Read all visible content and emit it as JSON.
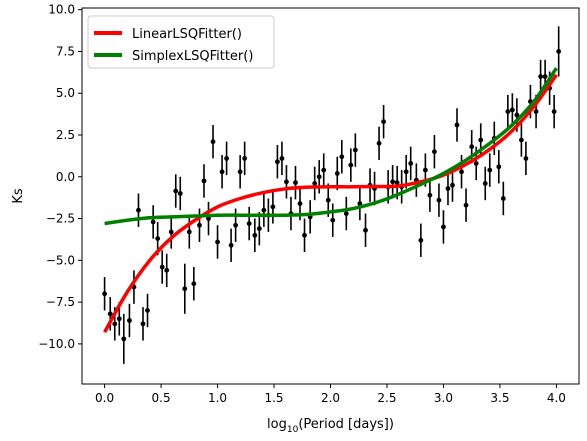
{
  "colors": {
    "linear": "#ff0000",
    "simplex": "#008000",
    "points": "#000000"
  },
  "chart_data": {
    "type": "scatter",
    "xlabel": "log$_{10}$(Period [days])",
    "xlabel_parts": {
      "main": "log",
      "sub": "10",
      "rest": "(Period [days])"
    },
    "ylabel": "Ks",
    "xlim": [
      -0.2,
      4.2
    ],
    "ylim": [
      -12.4,
      10.1
    ],
    "grid": false,
    "legend_placement": "top-left",
    "xticks": [
      0.0,
      0.5,
      1.0,
      1.5,
      2.0,
      2.5,
      3.0,
      3.5,
      4.0
    ],
    "xtick_labels": [
      "0.0",
      "0.5",
      "1.0",
      "1.5",
      "2.0",
      "2.5",
      "3.0",
      "3.5",
      "4.0"
    ],
    "yticks": [
      10.0,
      7.5,
      5.0,
      2.5,
      0.0,
      -2.5,
      -5.0,
      -7.5,
      -10.0
    ],
    "ytick_labels": [
      "10.0",
      "7.5",
      "5.0",
      "2.5",
      "0.0",
      "−2.5",
      "−5.0",
      "−7.5",
      "−10.0"
    ],
    "series": [
      {
        "name": "LinearLSQFitter()",
        "kind": "line",
        "color": "#ff0000",
        "x": [
          0.0,
          0.2,
          0.4,
          0.6,
          0.8,
          1.0,
          1.2,
          1.4,
          1.6,
          1.8,
          2.0,
          2.2,
          2.4,
          2.6,
          2.8,
          3.0,
          3.2,
          3.4,
          3.6,
          3.8,
          4.0
        ],
        "y": [
          -9.3,
          -6.9,
          -5.0,
          -3.6,
          -2.6,
          -1.8,
          -1.3,
          -0.95,
          -0.72,
          -0.62,
          -0.6,
          -0.6,
          -0.58,
          -0.55,
          -0.3,
          0.1,
          0.75,
          1.6,
          2.7,
          4.2,
          6.1
        ]
      },
      {
        "name": "SimplexLSQFitter()",
        "kind": "line",
        "color": "#008000",
        "x": [
          0.0,
          0.2,
          0.4,
          0.6,
          0.8,
          1.0,
          1.2,
          1.4,
          1.6,
          1.8,
          2.0,
          2.2,
          2.4,
          2.6,
          2.8,
          3.0,
          3.2,
          3.4,
          3.6,
          3.8,
          4.0
        ],
        "y": [
          -2.8,
          -2.6,
          -2.45,
          -2.4,
          -2.35,
          -2.3,
          -2.3,
          -2.3,
          -2.3,
          -2.25,
          -2.1,
          -1.9,
          -1.55,
          -1.05,
          -0.45,
          0.2,
          1.0,
          1.95,
          3.05,
          4.5,
          6.5
        ]
      },
      {
        "name": "data",
        "kind": "errorbar",
        "color": "#000000",
        "points": [
          {
            "x": 0.0,
            "y": -7.0,
            "err": 1.0
          },
          {
            "x": 0.05,
            "y": -8.2,
            "err": 1.0
          },
          {
            "x": 0.09,
            "y": -8.8,
            "err": 1.0
          },
          {
            "x": 0.13,
            "y": -8.5,
            "err": 1.0
          },
          {
            "x": 0.17,
            "y": -9.7,
            "err": 1.5
          },
          {
            "x": 0.22,
            "y": -8.6,
            "err": 1.0
          },
          {
            "x": 0.26,
            "y": -6.6,
            "err": 1.0
          },
          {
            "x": 0.3,
            "y": -2.0,
            "err": 1.0
          },
          {
            "x": 0.34,
            "y": -8.8,
            "err": 1.0
          },
          {
            "x": 0.38,
            "y": -8.0,
            "err": 1.0
          },
          {
            "x": 0.43,
            "y": -2.7,
            "err": 1.0
          },
          {
            "x": 0.47,
            "y": -3.7,
            "err": 1.0
          },
          {
            "x": 0.51,
            "y": -5.4,
            "err": 1.0
          },
          {
            "x": 0.55,
            "y": -5.6,
            "err": 1.0
          },
          {
            "x": 0.59,
            "y": -3.3,
            "err": 1.0
          },
          {
            "x": 0.63,
            "y": -0.85,
            "err": 1.0
          },
          {
            "x": 0.67,
            "y": -1.0,
            "err": 1.0
          },
          {
            "x": 0.71,
            "y": -6.7,
            "err": 1.5
          },
          {
            "x": 0.75,
            "y": -3.3,
            "err": 1.0
          },
          {
            "x": 0.79,
            "y": -6.4,
            "err": 1.0
          },
          {
            "x": 0.84,
            "y": -2.9,
            "err": 1.0
          },
          {
            "x": 0.88,
            "y": -0.25,
            "err": 1.0
          },
          {
            "x": 0.92,
            "y": -2.5,
            "err": 1.0
          },
          {
            "x": 0.96,
            "y": 2.1,
            "err": 1.0
          },
          {
            "x": 1.0,
            "y": -3.9,
            "err": 1.0
          },
          {
            "x": 1.04,
            "y": 0.3,
            "err": 1.0
          },
          {
            "x": 1.08,
            "y": 1.1,
            "err": 1.0
          },
          {
            "x": 1.12,
            "y": -4.1,
            "err": 1.0
          },
          {
            "x": 1.16,
            "y": -2.9,
            "err": 1.0
          },
          {
            "x": 1.2,
            "y": 0.3,
            "err": 1.0
          },
          {
            "x": 1.24,
            "y": 1.1,
            "err": 1.0
          },
          {
            "x": 1.28,
            "y": -2.8,
            "err": 1.0
          },
          {
            "x": 1.33,
            "y": -3.5,
            "err": 1.0
          },
          {
            "x": 1.37,
            "y": -3.1,
            "err": 1.0
          },
          {
            "x": 1.41,
            "y": -2.0,
            "err": 1.0
          },
          {
            "x": 1.45,
            "y": -2.3,
            "err": 1.0
          },
          {
            "x": 1.49,
            "y": -1.8,
            "err": 1.0
          },
          {
            "x": 1.53,
            "y": 0.9,
            "err": 1.0
          },
          {
            "x": 1.57,
            "y": 1.1,
            "err": 1.0
          },
          {
            "x": 1.61,
            "y": -0.3,
            "err": 1.0
          },
          {
            "x": 1.65,
            "y": -2.2,
            "err": 1.0
          },
          {
            "x": 1.69,
            "y": -0.35,
            "err": 1.0
          },
          {
            "x": 1.73,
            "y": -1.6,
            "err": 1.0
          },
          {
            "x": 1.77,
            "y": -3.5,
            "err": 1.0
          },
          {
            "x": 1.82,
            "y": -2.4,
            "err": 1.0
          },
          {
            "x": 1.86,
            "y": -0.4,
            "err": 1.0
          },
          {
            "x": 1.9,
            "y": 0.0,
            "err": 1.0
          },
          {
            "x": 1.94,
            "y": 0.4,
            "err": 1.0
          },
          {
            "x": 1.98,
            "y": -1.4,
            "err": 1.0
          },
          {
            "x": 2.02,
            "y": -2.6,
            "err": 1.0
          },
          {
            "x": 2.06,
            "y": 0.2,
            "err": 1.0
          },
          {
            "x": 2.1,
            "y": 1.2,
            "err": 1.0
          },
          {
            "x": 2.14,
            "y": -2.2,
            "err": 1.0
          },
          {
            "x": 2.18,
            "y": 0.7,
            "err": 1.0
          },
          {
            "x": 2.22,
            "y": 1.6,
            "err": 1.0
          },
          {
            "x": 2.26,
            "y": -1.6,
            "err": 1.0
          },
          {
            "x": 2.31,
            "y": -3.2,
            "err": 1.0
          },
          {
            "x": 2.35,
            "y": -0.5,
            "err": 1.0
          },
          {
            "x": 2.39,
            "y": -0.7,
            "err": 1.0
          },
          {
            "x": 2.43,
            "y": 2.0,
            "err": 1.0
          },
          {
            "x": 2.47,
            "y": 3.3,
            "err": 1.0
          },
          {
            "x": 2.51,
            "y": -0.6,
            "err": 1.0
          },
          {
            "x": 2.55,
            "y": -0.3,
            "err": 1.0
          },
          {
            "x": 2.59,
            "y": -0.35,
            "err": 1.0
          },
          {
            "x": 2.63,
            "y": -0.6,
            "err": 1.0
          },
          {
            "x": 2.67,
            "y": 0.3,
            "err": 1.0
          },
          {
            "x": 2.71,
            "y": 0.8,
            "err": 1.0
          },
          {
            "x": 2.76,
            "y": -0.2,
            "err": 1.0
          },
          {
            "x": 2.8,
            "y": -3.8,
            "err": 1.0
          },
          {
            "x": 2.84,
            "y": 0.4,
            "err": 1.0
          },
          {
            "x": 2.88,
            "y": -1.1,
            "err": 1.0
          },
          {
            "x": 2.92,
            "y": 1.5,
            "err": 1.0
          },
          {
            "x": 2.96,
            "y": -1.4,
            "err": 1.0
          },
          {
            "x": 3.0,
            "y": -3.0,
            "err": 1.0
          },
          {
            "x": 3.04,
            "y": -0.7,
            "err": 1.0
          },
          {
            "x": 3.08,
            "y": -0.5,
            "err": 1.0
          },
          {
            "x": 3.12,
            "y": 3.1,
            "err": 1.0
          },
          {
            "x": 3.16,
            "y": 0.3,
            "err": 1.0
          },
          {
            "x": 3.2,
            "y": -1.7,
            "err": 1.0
          },
          {
            "x": 3.25,
            "y": 1.8,
            "err": 1.0
          },
          {
            "x": 3.29,
            "y": 0.8,
            "err": 1.0
          },
          {
            "x": 3.33,
            "y": 2.2,
            "err": 1.0
          },
          {
            "x": 3.37,
            "y": -0.4,
            "err": 1.0
          },
          {
            "x": 3.41,
            "y": 0.4,
            "err": 1.0
          },
          {
            "x": 3.45,
            "y": 2.3,
            "err": 1.0
          },
          {
            "x": 3.49,
            "y": 0.6,
            "err": 1.0
          },
          {
            "x": 3.53,
            "y": -1.3,
            "err": 1.0
          },
          {
            "x": 3.57,
            "y": 3.9,
            "err": 1.0
          },
          {
            "x": 3.61,
            "y": 4.0,
            "err": 1.0
          },
          {
            "x": 3.65,
            "y": 3.7,
            "err": 1.0
          },
          {
            "x": 3.69,
            "y": 2.2,
            "err": 1.0
          },
          {
            "x": 3.73,
            "y": 1.1,
            "err": 1.0
          },
          {
            "x": 3.77,
            "y": 4.5,
            "err": 1.0
          },
          {
            "x": 3.82,
            "y": 3.9,
            "err": 1.0
          },
          {
            "x": 3.86,
            "y": 6.0,
            "err": 1.0
          },
          {
            "x": 3.9,
            "y": 6.0,
            "err": 1.0
          },
          {
            "x": 3.94,
            "y": 5.3,
            "err": 1.0
          },
          {
            "x": 3.98,
            "y": 3.9,
            "err": 1.0
          },
          {
            "x": 4.02,
            "y": 7.5,
            "err": 1.5
          }
        ]
      }
    ]
  }
}
